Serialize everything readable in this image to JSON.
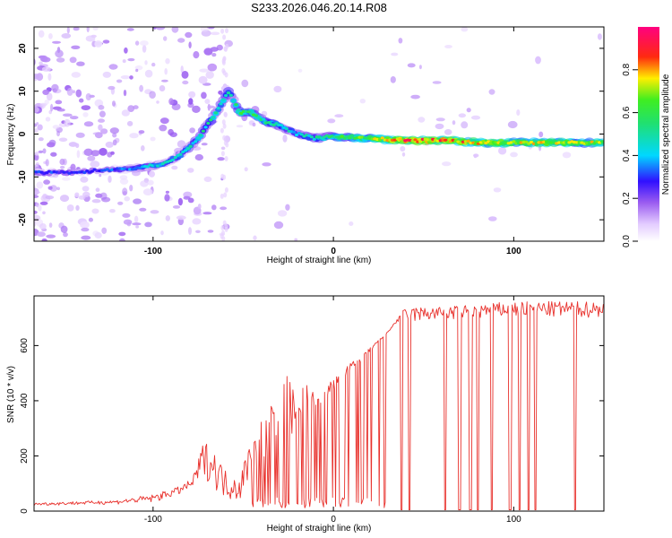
{
  "title": "S233.2026.046.20.14.R08",
  "colors": {
    "snr_line": "#e8312c",
    "frame": "#000000",
    "band_core": "#e0245a",
    "band_edge": "#2020ff",
    "noise": "#b792f5"
  },
  "chart_data": [
    {
      "type": "heatmap",
      "title": "S233.2026.046.20.14.R08",
      "xlabel": "Height of straight line (km)",
      "ylabel": "Frequency (Hz)",
      "xlim": [
        -166,
        150
      ],
      "ylim": [
        -25,
        25
      ],
      "xticks": [
        -100,
        0,
        100
      ],
      "xtick_labels": [
        "-100",
        "0",
        "100"
      ],
      "yticks": [
        -20,
        -10,
        0,
        10,
        20
      ],
      "ytick_labels": [
        "-20",
        "-10",
        "0",
        "10",
        "20"
      ],
      "colorbar": {
        "label": "Normalized spectral amplitude",
        "range": [
          0,
          1
        ],
        "ticks": [
          0.0,
          0.2,
          0.4,
          0.6,
          0.8
        ],
        "tick_labels": [
          "0.0",
          "0.2",
          "0.4",
          "0.6",
          "0.8"
        ],
        "colormap": "rainbow (white-violet-blue-cyan-green-yellow-red-magenta)"
      },
      "ridge": {
        "description": "frequency of peak spectral amplitude vs height",
        "x": [
          -166,
          -150,
          -130,
          -110,
          -95,
          -85,
          -75,
          -65,
          -58,
          -52,
          -45,
          -38,
          -30,
          -20,
          -10,
          0,
          20,
          40,
          60,
          80,
          100,
          120,
          150
        ],
        "y": [
          -9,
          -9,
          -8.5,
          -8,
          -7,
          -5,
          -1,
          5,
          10,
          5,
          5,
          3,
          2,
          0,
          -1,
          -0.5,
          -1,
          -1.5,
          -1.5,
          -2,
          -2,
          -2,
          -2
        ],
        "amplitude": [
          0.35,
          0.3,
          0.3,
          0.4,
          0.45,
          0.45,
          0.5,
          0.55,
          0.5,
          0.6,
          0.6,
          0.55,
          0.5,
          0.45,
          0.5,
          0.6,
          0.7,
          0.9,
          0.9,
          0.8,
          0.75,
          0.75,
          0.75
        ]
      }
    },
    {
      "type": "line",
      "xlabel": "Height of straight line (km)",
      "ylabel": "SNR (10 * v/v)",
      "xlim": [
        -166,
        150
      ],
      "ylim": [
        0,
        780
      ],
      "xticks": [
        -100,
        0,
        100
      ],
      "xtick_labels": [
        "-100",
        "0",
        "100"
      ],
      "yticks": [
        0,
        200,
        400,
        600
      ],
      "ytick_labels": [
        "0",
        "200",
        "400",
        "600"
      ],
      "envelope": {
        "description": "approximate upper envelope of SNR vs height",
        "x": [
          -166,
          -120,
          -100,
          -85,
          -78,
          -72,
          -66,
          -60,
          -52,
          -45,
          -38,
          -30,
          -22,
          -15,
          -8,
          0,
          10,
          20,
          30,
          40,
          60,
          80,
          100,
          120,
          150
        ],
        "y": [
          30,
          40,
          60,
          90,
          120,
          260,
          220,
          150,
          130,
          280,
          350,
          520,
          500,
          470,
          430,
          480,
          540,
          590,
          650,
          740,
          740,
          750,
          760,
          760,
          760
        ]
      },
      "baseline": {
        "x": [
          -166,
          -120,
          -100,
          -85,
          -70,
          -60,
          -52,
          -45,
          -35,
          -25,
          -15,
          -5,
          5,
          15,
          25,
          35,
          60,
          100,
          150
        ],
        "y": [
          20,
          25,
          30,
          60,
          110,
          40,
          30,
          150,
          180,
          250,
          330,
          400,
          470,
          540,
          610,
          680,
          690,
          700,
          700
        ]
      },
      "dropouts_x": [
        38,
        42,
        62,
        70,
        76,
        80,
        88,
        98,
        103,
        108,
        112,
        134
      ]
    }
  ]
}
